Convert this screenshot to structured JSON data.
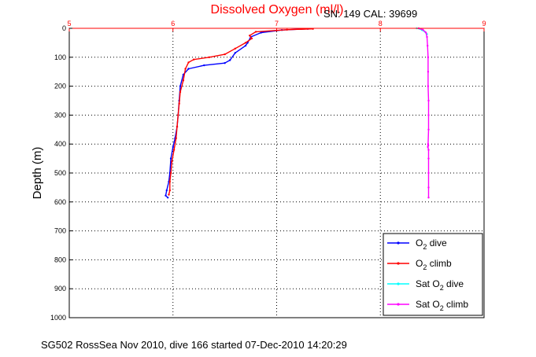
{
  "chart_data": {
    "type": "line",
    "title": "Dissolved Oxygen (ml/l)",
    "annotation": "SN: 149  CAL: 39699",
    "footer": "SG502 RossSea Nov 2010, dive 166 started 07-Dec-2010 14:20:29",
    "xlabel": "",
    "ylabel": "Depth (m)",
    "xlim": [
      5,
      9
    ],
    "ylim": [
      0,
      1000
    ],
    "y_reversed": true,
    "x_axis_position": "top",
    "x_ticks": [
      5,
      6,
      7,
      8,
      9
    ],
    "y_ticks": [
      0,
      100,
      200,
      300,
      400,
      500,
      600,
      700,
      800,
      900,
      1000
    ],
    "grid": true,
    "grid_style": "dotted",
    "legend_position": "bottom-right",
    "colors": {
      "axis": "#ff0000",
      "title": "#ff0000",
      "o2_dive": "#0000ff",
      "o2_climb": "#ff0000",
      "sat_dive": "#00ffff",
      "sat_climb": "#ff00ff"
    },
    "series": [
      {
        "name": "O2 dive",
        "legend": {
          "main": "O",
          "sub": "2",
          "rest": " dive"
        },
        "color": "#0000ff",
        "points": [
          [
            7.3,
            2
          ],
          [
            7.05,
            6
          ],
          [
            6.85,
            15
          ],
          [
            6.75,
            30
          ],
          [
            6.72,
            50
          ],
          [
            6.7,
            60
          ],
          [
            6.6,
            85
          ],
          [
            6.55,
            110
          ],
          [
            6.5,
            120
          ],
          [
            6.3,
            128
          ],
          [
            6.15,
            140
          ],
          [
            6.1,
            160
          ],
          [
            6.07,
            200
          ],
          [
            6.06,
            250
          ],
          [
            6.05,
            300
          ],
          [
            6.04,
            340
          ],
          [
            6.02,
            380
          ],
          [
            6.0,
            410
          ],
          [
            5.98,
            450
          ],
          [
            5.97,
            500
          ],
          [
            5.96,
            530
          ],
          [
            5.94,
            560
          ],
          [
            5.93,
            578
          ],
          [
            5.95,
            585
          ]
        ]
      },
      {
        "name": "O2 climb",
        "legend": {
          "main": "O",
          "sub": "2",
          "rest": " climb"
        },
        "color": "#ff0000",
        "points": [
          [
            7.35,
            2
          ],
          [
            7.1,
            5
          ],
          [
            6.8,
            12
          ],
          [
            6.74,
            25
          ],
          [
            6.76,
            35
          ],
          [
            6.7,
            50
          ],
          [
            6.6,
            70
          ],
          [
            6.5,
            90
          ],
          [
            6.35,
            100
          ],
          [
            6.2,
            108
          ],
          [
            6.15,
            118
          ],
          [
            6.12,
            140
          ],
          [
            6.1,
            180
          ],
          [
            6.07,
            220
          ],
          [
            6.06,
            260
          ],
          [
            6.05,
            300
          ],
          [
            6.04,
            340
          ],
          [
            6.03,
            380
          ],
          [
            6.01,
            420
          ],
          [
            5.99,
            460
          ],
          [
            5.98,
            500
          ],
          [
            5.97,
            530
          ],
          [
            5.97,
            560
          ],
          [
            5.96,
            575
          ]
        ]
      },
      {
        "name": "Sat O2 dive",
        "legend": {
          "main": "Sat O",
          "sub": "2",
          "rest": " dive"
        },
        "color": "#00ffff",
        "points": [
          [
            8.35,
            0
          ],
          [
            8.38,
            2
          ],
          [
            8.4,
            6
          ],
          [
            8.43,
            12
          ],
          [
            8.45,
            20
          ]
        ]
      },
      {
        "name": "Sat O2 climb",
        "legend": {
          "main": "Sat O",
          "sub": "2",
          "rest": " climb"
        },
        "color": "#ff00ff",
        "points": [
          [
            8.37,
            0
          ],
          [
            8.41,
            5
          ],
          [
            8.44,
            15
          ],
          [
            8.45,
            30
          ],
          [
            8.455,
            60
          ],
          [
            8.46,
            100
          ],
          [
            8.46,
            150
          ],
          [
            8.46,
            200
          ],
          [
            8.465,
            250
          ],
          [
            8.465,
            300
          ],
          [
            8.465,
            350
          ],
          [
            8.46,
            400
          ],
          [
            8.462,
            405
          ],
          [
            8.458,
            410
          ],
          [
            8.465,
            420
          ],
          [
            8.465,
            450
          ],
          [
            8.465,
            500
          ],
          [
            8.465,
            550
          ],
          [
            8.465,
            585
          ]
        ]
      }
    ]
  }
}
